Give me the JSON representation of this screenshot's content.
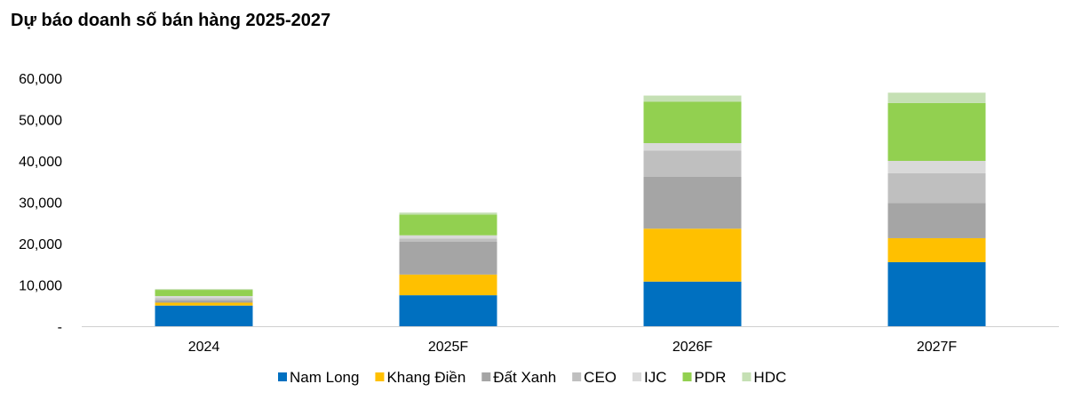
{
  "chart_data": {
    "type": "bar",
    "stacked": true,
    "title": "Dự báo doanh số bán hàng 2025-2027",
    "xlabel": "",
    "ylabel": "",
    "ylim": [
      0,
      60000
    ],
    "yticks": [
      0,
      10000,
      20000,
      30000,
      40000,
      50000,
      60000
    ],
    "ytick_labels": [
      "-",
      "10,000",
      "20,000",
      "30,000",
      "40,000",
      "50,000",
      "60,000"
    ],
    "grid": false,
    "legend_position": "bottom",
    "categories": [
      "2024",
      "2025F",
      "2026F",
      "2027F"
    ],
    "series": [
      {
        "name": "Nam Long",
        "color": "#0070C0",
        "values": [
          5000,
          7500,
          10800,
          15500
        ]
      },
      {
        "name": "Khang Điền",
        "color": "#FFC000",
        "values": [
          700,
          5000,
          12800,
          5800
        ]
      },
      {
        "name": "Đất Xanh",
        "color": "#A5A5A5",
        "values": [
          600,
          8000,
          12600,
          8500
        ]
      },
      {
        "name": "CEO",
        "color": "#BFBFBF",
        "values": [
          500,
          700,
          6300,
          7200
        ]
      },
      {
        "name": "IJC",
        "color": "#D9D9D9",
        "values": [
          500,
          800,
          1800,
          3000
        ]
      },
      {
        "name": "PDR",
        "color": "#92D050",
        "values": [
          1500,
          5000,
          10000,
          14000
        ]
      },
      {
        "name": "HDC",
        "color": "#C5E0B4",
        "values": [
          200,
          500,
          1500,
          2500
        ]
      }
    ]
  }
}
